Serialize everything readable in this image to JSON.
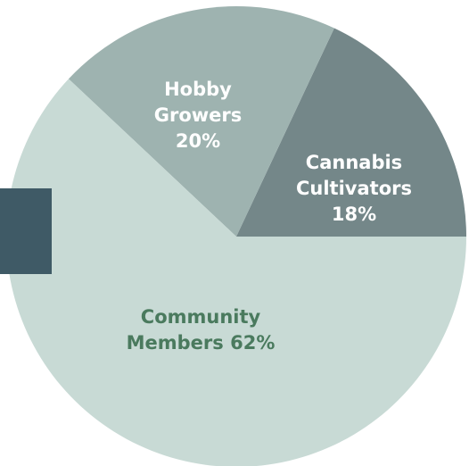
{
  "chart_data": {
    "type": "pie",
    "slices": [
      {
        "name": "Cannabis Cultivators",
        "value": 18,
        "label_lines": [
          "Cannabis",
          "Cultivators",
          "18%"
        ],
        "color": "#748789",
        "label_color": "#ffffff"
      },
      {
        "name": "Hobby Growers",
        "value": 20,
        "label_lines": [
          "Hobby",
          "Growers",
          "20%"
        ],
        "color": "#9eb3b0",
        "label_color": "#ffffff"
      },
      {
        "name": "Community Members",
        "value": 62,
        "label_lines": [
          "Community",
          "Members 62%"
        ],
        "color": "#c8dad5",
        "label_color": "#4a7a5e"
      }
    ],
    "start_angle_deg": 0,
    "direction": "counterclockwise",
    "legend": "none"
  },
  "accent_color": "#3f5a66"
}
